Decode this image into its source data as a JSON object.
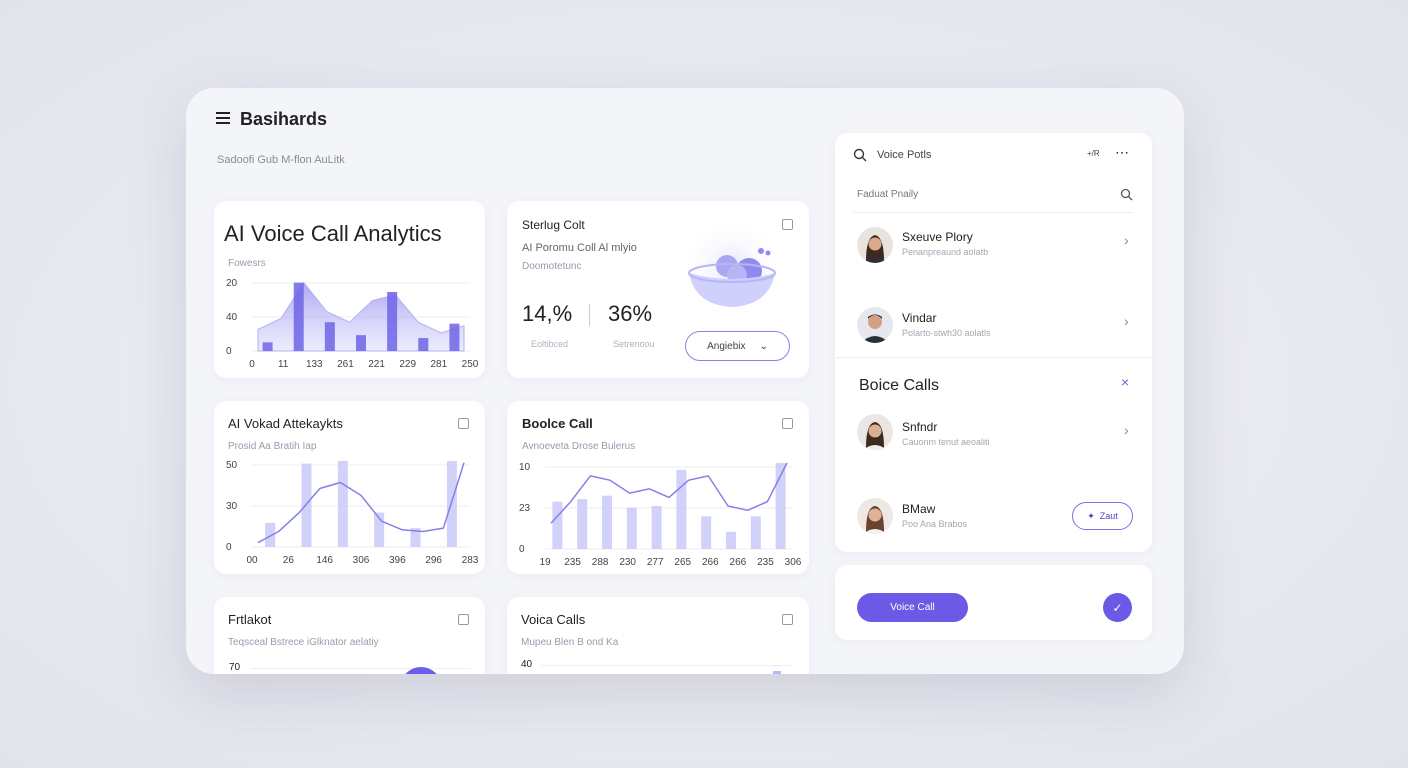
{
  "header": {
    "title": "Basihards",
    "subtitle": "Sadoofi Gub M-flon AuLitk"
  },
  "cards": [
    {
      "title": "AI Voice Call Analytics",
      "subtitle": "Fowesrs",
      "chart": {
        "y_labels": [
          "20",
          "40",
          "0"
        ],
        "x_labels": [
          "0",
          "11",
          "133",
          "261",
          "221",
          "229",
          "281",
          "250"
        ],
        "ylim": [
          0,
          100
        ],
        "area": [
          30,
          45,
          95,
          55,
          40,
          70,
          78,
          40,
          25,
          35
        ],
        "bars": [
          12,
          95,
          40,
          22,
          82,
          18,
          38
        ]
      }
    },
    {
      "title": "Sterlug Colt",
      "subtitle": "AI Poromu Coll Al mlyio",
      "caption": "Doomotetunc",
      "stats": [
        {
          "value": "14,%",
          "label": "Eoltibced"
        },
        {
          "value": "36%",
          "label": "Setrenoou"
        }
      ],
      "button": "Angiebix"
    },
    {
      "title": "AI Vokad Attekaykts",
      "subtitle": "Prosid Aa Bratih Iap",
      "chart": {
        "y_labels": [
          "50",
          "30",
          "0"
        ],
        "x_labels": [
          "00",
          "26",
          "146",
          "306",
          "396",
          "296",
          "283"
        ],
        "ylim": [
          0,
          100
        ],
        "line": [
          5,
          18,
          40,
          68,
          75,
          60,
          30,
          20,
          18,
          22,
          98
        ],
        "bars": [
          28,
          97,
          100,
          40,
          22,
          100
        ]
      }
    },
    {
      "title": "Boolce Call",
      "subtitle": "Avnoeveta Drose Bulerus",
      "chart": {
        "y_labels": [
          "10",
          "23",
          "0"
        ],
        "x_labels": [
          "19",
          "235",
          "288",
          "230",
          "277",
          "265",
          "266",
          "266",
          "235",
          "306"
        ],
        "ylim": [
          0,
          100
        ],
        "line": [
          30,
          55,
          85,
          80,
          65,
          70,
          60,
          80,
          85,
          50,
          45,
          55,
          100
        ],
        "bars": [
          55,
          58,
          62,
          48,
          50,
          92,
          38,
          20,
          38,
          100
        ]
      }
    },
    {
      "title": "Frtlakot",
      "subtitle": "Teqsceal Bstrece iGlknator aelatiy",
      "y_label": "70"
    },
    {
      "title": "Voica Calls",
      "subtitle": "Mupeu Blen B ond Ka",
      "y_label": "40"
    }
  ],
  "sidebar": {
    "search": "Voice Potls",
    "badge": "+/R",
    "filter": "Faduat Pnaily",
    "items": [
      {
        "name": "Sxeuve Plory",
        "detail": "Penanpreaund aolatb"
      },
      {
        "name": "Vindar",
        "detail": "Polarto-stwh30 aolatls"
      }
    ],
    "section": {
      "title": "Boice Calls",
      "items": [
        {
          "name": "Snfndr",
          "detail": "Cauonm tenut aeoaliti"
        },
        {
          "name": "BMaw",
          "detail": "Poo Ana Brabos",
          "button": "Zaut"
        }
      ]
    }
  },
  "footer": {
    "button": "Voice Call"
  }
}
